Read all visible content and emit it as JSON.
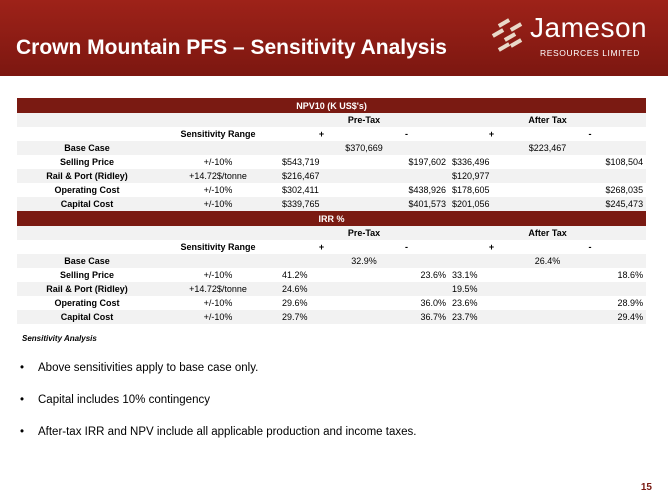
{
  "header": {
    "title": "Crown Mountain PFS – Sensitivity Analysis",
    "logo_name": "Jameson",
    "logo_sub": "RESOURCES LIMITED"
  },
  "colors": {
    "banner": "#8b1d14",
    "section_bar": "#7a1a12",
    "row_band": "#f2f2f2"
  },
  "table": {
    "npv": {
      "section_title": "NPV10 (K US$'s)",
      "pre_tax": "Pre-Tax",
      "after_tax": "After Tax",
      "sensitivity_range": "Sensitivity Range",
      "plus": "+",
      "minus": "-",
      "rows": [
        {
          "label": "Base Case",
          "range": "",
          "pre_plus": "",
          "pre_minus": "",
          "after_plus": "",
          "after_minus": "",
          "pre_base": "$370,669",
          "after_base": "$223,467"
        },
        {
          "label": "Selling Price",
          "range": "+/-10%",
          "pre_plus": "$543,719",
          "pre_minus": "$197,602",
          "after_plus": "$336,496",
          "after_minus": "$108,504"
        },
        {
          "label": "Rail & Port (Ridley)",
          "range": "+14.72$/tonne",
          "pre_plus": "$216,467",
          "pre_minus": "",
          "after_plus": "$120,977",
          "after_minus": ""
        },
        {
          "label": "Operating Cost",
          "range": "+/-10%",
          "pre_plus": "$302,411",
          "pre_minus": "$438,926",
          "after_plus": "$178,605",
          "after_minus": "$268,035"
        },
        {
          "label": "Capital Cost",
          "range": "+/-10%",
          "pre_plus": "$339,765",
          "pre_minus": "$401,573",
          "after_plus": "$201,056",
          "after_minus": "$245,473"
        }
      ]
    },
    "irr": {
      "section_title": "IRR %",
      "pre_tax": "Pre-Tax",
      "after_tax": "After Tax",
      "sensitivity_range": "Sensitivity Range",
      "plus": "+",
      "minus": "-",
      "rows": [
        {
          "label": "Base Case",
          "range": "",
          "pre_base": "32.9%",
          "after_base": "26.4%"
        },
        {
          "label": "Selling Price",
          "range": "+/-10%",
          "pre_plus": "41.2%",
          "pre_minus": "23.6%",
          "after_plus": "33.1%",
          "after_minus": "18.6%"
        },
        {
          "label": "Rail & Port (Ridley)",
          "range": "+14.72$/tonne",
          "pre_plus": "24.6%",
          "pre_minus": "",
          "after_plus": "19.5%",
          "after_minus": ""
        },
        {
          "label": "Operating Cost",
          "range": "+/-10%",
          "pre_plus": "29.6%",
          "pre_minus": "36.0%",
          "after_plus": "23.6%",
          "after_minus": "28.9%"
        },
        {
          "label": "Capital Cost",
          "range": "+/-10%",
          "pre_plus": "29.7%",
          "pre_minus": "36.7%",
          "after_plus": "23.7%",
          "after_minus": "29.4%"
        }
      ]
    }
  },
  "caption": "Sensitivity Analysis",
  "bullets": [
    "Above sensitivities apply to base case only.",
    "Capital includes 10% contingency",
    "After-tax IRR and NPV include all applicable production and income taxes."
  ],
  "bullet_glyph": "•",
  "page_number": "15"
}
